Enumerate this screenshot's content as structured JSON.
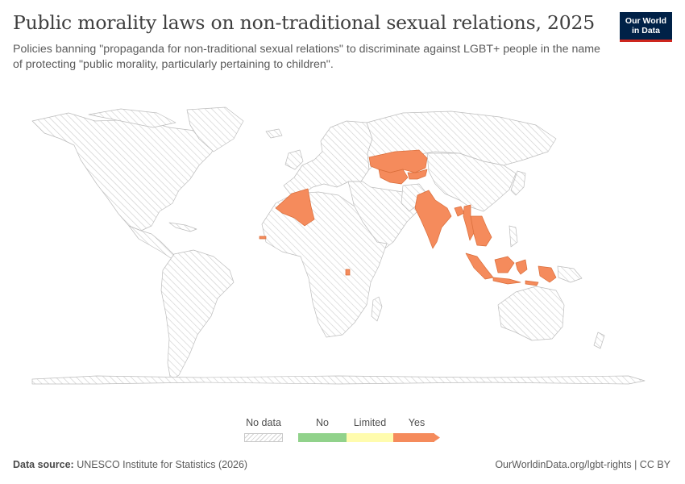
{
  "header": {
    "title": "Public morality laws on non-traditional sexual relations, 2025",
    "subtitle": "Policies banning \"propaganda for non-traditional sexual relations\" to discriminate against LGBT+ people in the name of protecting \"public morality, particularly pertaining to children\".",
    "logo_line1": "Our World",
    "logo_line2": "in Data"
  },
  "colors": {
    "no": "#91d28b",
    "limited": "#fffcae",
    "yes": "#f58b5c",
    "no_data_hatch": "#d0d0d0",
    "land_outline": "#b8b8b8",
    "brand": "#002147",
    "brand_accent": "#ce261e"
  },
  "map_data": {
    "year": "2025",
    "countries_yes": [
      "Kazakhstan",
      "Kyrgyzstan",
      "Uzbekistan",
      "Turkmenistan",
      "Tajikistan",
      "Algeria",
      "The Gambia",
      "Uganda",
      "India",
      "Bangladesh",
      "Myanmar",
      "Thailand",
      "Laos",
      "Cambodia",
      "Indonesia"
    ],
    "all_other_countries": "No data"
  },
  "legend": {
    "no_data_label": "No data",
    "items": [
      {
        "label": "No"
      },
      {
        "label": "Limited"
      },
      {
        "label": "Yes"
      }
    ]
  },
  "footer": {
    "source_label": "Data source:",
    "source_value": "UNESCO Institute for Statistics (2026)",
    "url": "OurWorldinData.org/lgbt-rights | CC BY"
  }
}
